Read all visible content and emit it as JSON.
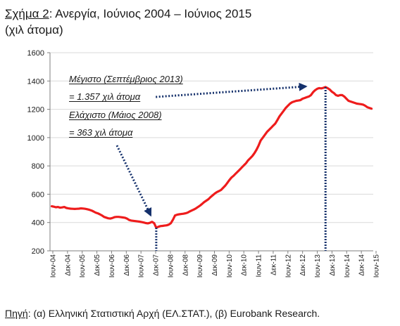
{
  "header": {
    "figure_label": "Σχήμα 2",
    "title_rest": ": Ανεργία, Ιούνιος 2004 – Ιούνιος 2015",
    "subtitle": "(χιλ άτομα)"
  },
  "footer": {
    "source_label": "Πηγή",
    "source_text": ": (α) Ελληνική Στατιστική Αρχή (ΕΛ.ΣΤΑΤ.), (β) Eurobank Research."
  },
  "colors": {
    "series": "#ee1c1c",
    "marker": "#14306b",
    "axis": "#7f7f7f",
    "grid": "#d9d9d9"
  },
  "chart_data": {
    "type": "line",
    "title": "Σχήμα 2: Ανεργία, Ιούνιος 2004 – Ιούνιος 2015",
    "subtitle": "(χιλ άτομα)",
    "xlabel": "",
    "ylabel": "",
    "ylim": [
      200,
      1600
    ],
    "yticks": [
      200,
      400,
      600,
      800,
      1000,
      1200,
      1400,
      1600
    ],
    "grid": "horizontal",
    "x_start": "Ιουν-04",
    "x_end": "Ιουν-15",
    "x_ticks": [
      "Ιουν-04",
      "Δεκ-04",
      "Ιουν-05",
      "Δεκ-05",
      "Ιουν-06",
      "Δεκ-06",
      "Ιουν-07",
      "Δεκ-07",
      "Ιουν-08",
      "Δεκ-08",
      "Ιουν-09",
      "Δεκ-09",
      "Ιουν-10",
      "Δεκ-10",
      "Ιουν-11",
      "Δεκ-11",
      "Ιουν-12",
      "Δεκ-12",
      "Ιουν-13",
      "Δεκ-13",
      "Ιουν-14",
      "Δεκ-14",
      "Ιουν-15"
    ],
    "series": [
      {
        "values": [
          515,
          512,
          508,
          510,
          505,
          507,
          510,
          503,
          500,
          498,
          497,
          496,
          497,
          498,
          500,
          499,
          497,
          494,
          490,
          485,
          478,
          470,
          465,
          458,
          450,
          440,
          435,
          430,
          428,
          432,
          438,
          440,
          440,
          438,
          436,
          434,
          428,
          418,
          414,
          412,
          410,
          408,
          406,
          403,
          400,
          396,
          394,
          398,
          405,
          395,
          363,
          370,
          375,
          376,
          378,
          380,
          385,
          395,
          420,
          450,
          455,
          458,
          460,
          462,
          465,
          470,
          478,
          485,
          492,
          500,
          510,
          520,
          532,
          545,
          555,
          565,
          580,
          592,
          605,
          615,
          622,
          630,
          645,
          660,
          680,
          700,
          718,
          730,
          745,
          760,
          775,
          790,
          805,
          820,
          840,
          855,
          870,
          890,
          915,
          945,
          980,
          1000,
          1020,
          1040,
          1055,
          1070,
          1085,
          1100,
          1125,
          1150,
          1170,
          1190,
          1210,
          1225,
          1240,
          1250,
          1255,
          1260,
          1262,
          1265,
          1275,
          1280,
          1285,
          1290,
          1300,
          1320,
          1335,
          1345,
          1350,
          1348,
          1352,
          1357,
          1350,
          1340,
          1325,
          1315,
          1300,
          1295,
          1300,
          1300,
          1290,
          1275,
          1260,
          1255,
          1250,
          1245,
          1240,
          1238,
          1236,
          1233,
          1225,
          1215,
          1210,
          1205
        ]
      }
    ],
    "annotations": [
      {
        "id": "max",
        "line1": "Μέγιστο (Σεπτέμβριος 2013)",
        "line2": "= 1.357 χιλ άτομα",
        "date": "Σεπ-13",
        "value": 1357
      },
      {
        "id": "min",
        "line1": "Ελάχιστο (Μάιος 2008)",
        "line2": "= 363 χιλ άτομα",
        "date": "Μάι-08",
        "value": 363
      }
    ]
  }
}
